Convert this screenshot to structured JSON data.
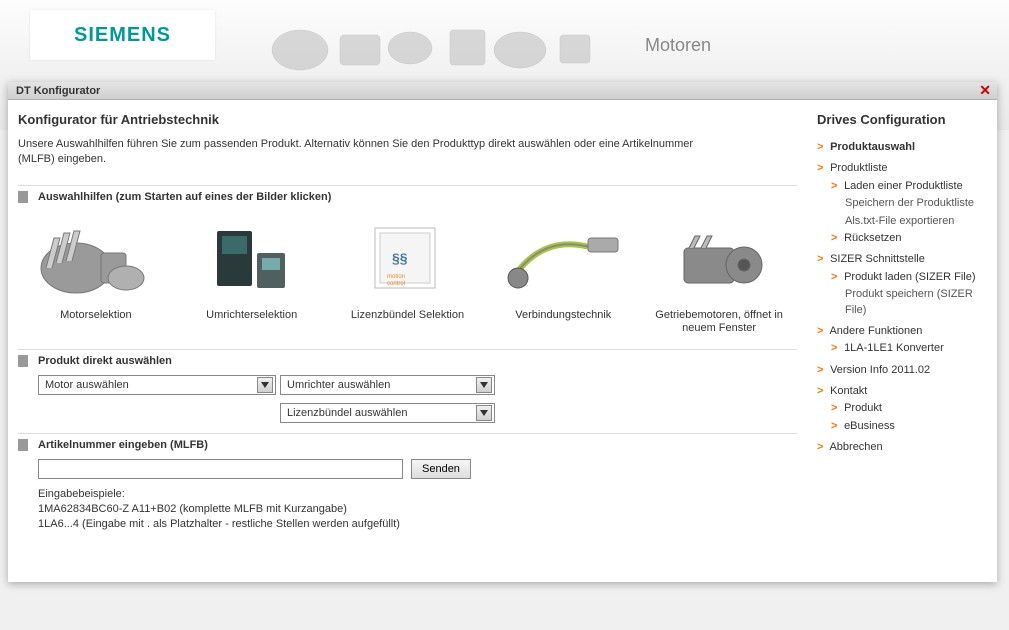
{
  "brand": "SIEMENS",
  "bg_title": "Motoren",
  "modal": {
    "title": "DT Konfigurator",
    "close_glyph": "✕"
  },
  "main": {
    "title": "Konfigurator für Antriebstechnik",
    "intro": "Unsere Auswahlhilfen führen Sie zum passenden Produkt. Alternativ können Sie den Produkttyp direkt auswählen oder eine Artikelnummer (MLFB) eingeben.",
    "section_aids": "Auswahlhilfen (zum Starten auf eines der Bilder klicken)",
    "aids": [
      {
        "label": "Motorselektion"
      },
      {
        "label": "Umrichterselektion"
      },
      {
        "label": "Lizenzbündel Selektion"
      },
      {
        "label": "Verbindungstechnik"
      },
      {
        "label": "Getriebemotoren, öffnet in neuem Fenster"
      }
    ],
    "section_direct": "Produkt direkt auswählen",
    "selects": {
      "motor": "Motor auswählen",
      "umrichter": "Umrichter auswählen",
      "lizenz": "Lizenzbündel auswählen"
    },
    "section_mlfb": "Artikelnummer eingeben (MLFB)",
    "mlfb_value": "",
    "send": "Senden",
    "examples_label": "Eingabebeispiele:",
    "example1": "1MA62834BC60-Z A11+B02 (komplette MLFB mit Kurzangabe)",
    "example2": "1LA6...4 (Eingabe mit . als Platzhalter - restliche Stellen werden aufgefüllt)"
  },
  "side": {
    "title": "Drives Configuration",
    "items": [
      {
        "level": 0,
        "arrow": true,
        "bold": true,
        "label": "Produktauswahl",
        "interact": true
      },
      {
        "level": 0,
        "arrow": true,
        "bold": false,
        "label": "Produktliste",
        "interact": true
      },
      {
        "level": 1,
        "arrow": true,
        "bold": false,
        "label": "Laden einer Produktliste",
        "interact": true
      },
      {
        "level": 2,
        "arrow": false,
        "bold": false,
        "label": "Speichern der Produktliste",
        "interact": true
      },
      {
        "level": 2,
        "arrow": false,
        "bold": false,
        "label": "Als.txt-File exportieren",
        "interact": true
      },
      {
        "level": 1,
        "arrow": true,
        "bold": false,
        "label": "Rücksetzen",
        "interact": true
      },
      {
        "level": 0,
        "arrow": true,
        "bold": false,
        "label": "SIZER Schnittstelle",
        "interact": true
      },
      {
        "level": 1,
        "arrow": true,
        "bold": false,
        "label": "Produkt laden (SIZER File)",
        "interact": true
      },
      {
        "level": 2,
        "arrow": false,
        "bold": false,
        "label": "Produkt speichern (SIZER File)",
        "interact": true
      },
      {
        "level": 0,
        "arrow": true,
        "bold": false,
        "label": "Andere Funktionen",
        "interact": true
      },
      {
        "level": 1,
        "arrow": true,
        "bold": false,
        "label": "1LA-1LE1 Konverter",
        "interact": true
      },
      {
        "level": 0,
        "arrow": true,
        "bold": false,
        "label": "Version Info 2011.02",
        "interact": true
      },
      {
        "level": 0,
        "arrow": true,
        "bold": false,
        "label": "Kontakt",
        "interact": true
      },
      {
        "level": 1,
        "arrow": true,
        "bold": false,
        "label": "Produkt",
        "interact": true
      },
      {
        "level": 1,
        "arrow": true,
        "bold": false,
        "label": "eBusiness",
        "interact": true
      },
      {
        "level": 0,
        "arrow": true,
        "bold": false,
        "label": "Abbrechen",
        "interact": true
      }
    ]
  },
  "colors": {
    "brand": "#009999",
    "arrow": "#ff7700",
    "close": "#cc0000"
  }
}
